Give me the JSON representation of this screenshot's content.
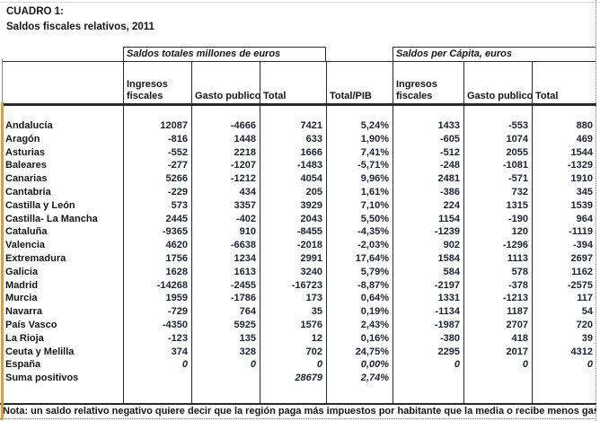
{
  "title": {
    "line1": "CUADRO 1:",
    "line2": "Saldos fiscales relativos, 2011"
  },
  "table": {
    "group_headers": [
      "Saldos totales millones de euros",
      "Saldos per Cápita, euros"
    ],
    "columns": [
      "",
      "Ingresos\nfiscales",
      "Gasto publico",
      "Total",
      "Total/PIB",
      "Ingresos\nfiscales",
      "Gasto publico",
      "Total"
    ],
    "rows": [
      {
        "region": "Andalucía",
        "values": [
          "12087",
          "-4666",
          "7421",
          "5,24%",
          "1433",
          "-553",
          "880"
        ],
        "italic": false
      },
      {
        "region": "Aragón",
        "values": [
          "-816",
          "1448",
          "633",
          "1,90%",
          "-605",
          "1074",
          "469"
        ],
        "italic": false
      },
      {
        "region": "Asturias",
        "values": [
          "-552",
          "2218",
          "1666",
          "7,41%",
          "-512",
          "2055",
          "1544"
        ],
        "italic": false
      },
      {
        "region": "Baleares",
        "values": [
          "-277",
          "-1207",
          "-1483",
          "-5,71%",
          "-248",
          "-1081",
          "-1329"
        ],
        "italic": false
      },
      {
        "region": "Canarias",
        "values": [
          "5266",
          "-1212",
          "4054",
          "9,96%",
          "2481",
          "-571",
          "1910"
        ],
        "italic": false
      },
      {
        "region": "Cantabria",
        "values": [
          "-229",
          "434",
          "205",
          "1,61%",
          "-386",
          "732",
          "345"
        ],
        "italic": false
      },
      {
        "region": "Castilla y León",
        "values": [
          "573",
          "3357",
          "3929",
          "7,10%",
          "224",
          "1315",
          "1539"
        ],
        "italic": false
      },
      {
        "region": "Castilla- La Mancha",
        "values": [
          "2445",
          "-402",
          "2043",
          "5,50%",
          "1154",
          "-190",
          "964"
        ],
        "italic": false
      },
      {
        "region": "Cataluña",
        "values": [
          "-9365",
          "910",
          "-8455",
          "-4,35%",
          "-1239",
          "120",
          "-1119"
        ],
        "italic": false
      },
      {
        "region": "Valencia",
        "values": [
          "4620",
          "-6638",
          "-2018",
          "-2,03%",
          "902",
          "-1296",
          "-394"
        ],
        "italic": false
      },
      {
        "region": "Extremadura",
        "values": [
          "1756",
          "1234",
          "2991",
          "17,64%",
          "1584",
          "1113",
          "2697"
        ],
        "italic": false
      },
      {
        "region": "Galicia",
        "values": [
          "1628",
          "1613",
          "3240",
          "5,79%",
          "584",
          "578",
          "1162"
        ],
        "italic": false
      },
      {
        "region": "Madrid",
        "values": [
          "-14268",
          "-2455",
          "-16723",
          "-8,87%",
          "-2197",
          "-378",
          "-2575"
        ],
        "italic": false
      },
      {
        "region": "Murcia",
        "values": [
          "1959",
          "-1786",
          "173",
          "0,64%",
          "1331",
          "-1213",
          "117"
        ],
        "italic": false
      },
      {
        "region": "Navarra",
        "values": [
          "-729",
          "764",
          "35",
          "0,19%",
          "-1134",
          "1187",
          "54"
        ],
        "italic": false
      },
      {
        "region": "País Vasco",
        "values": [
          "-4350",
          "5925",
          "1576",
          "2,43%",
          "-1987",
          "2707",
          "720"
        ],
        "italic": false
      },
      {
        "region": "La Rioja",
        "values": [
          "-123",
          "135",
          "12",
          "0,16%",
          "-380",
          "418",
          "39"
        ],
        "italic": false
      },
      {
        "region": "Ceuta y Melilla",
        "values": [
          "374",
          "328",
          "702",
          "24,75%",
          "2295",
          "2017",
          "4312"
        ],
        "italic": false
      },
      {
        "region": "España",
        "values": [
          "0",
          "0",
          "0",
          "0,00%",
          "0",
          "0",
          "0"
        ],
        "italic": true
      },
      {
        "region": "Suma positivos",
        "values": [
          "",
          "",
          "28679",
          "2,74%",
          "",
          "",
          ""
        ],
        "italic": true
      }
    ]
  },
  "note": "Nota: un saldo relativo negativo quiere decir que la región paga más impuestos por habitante que la media o recibe menos gasto",
  "colors": {
    "accent_strip": "#e29a3c",
    "border": "#2b2b2b",
    "dotted_line": "#737373",
    "label_text": "#161616",
    "number_text": "#1c2236"
  }
}
